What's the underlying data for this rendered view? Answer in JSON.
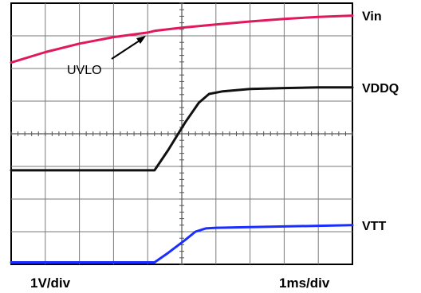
{
  "chart_data": {
    "type": "line",
    "grid": true,
    "xlim": [
      0,
      10
    ],
    "ylim": [
      0,
      8
    ],
    "bottom_left_label": "1V/div",
    "bottom_right_label": "1ms/div",
    "annotation": {
      "text": "UVLO",
      "x": 4.2,
      "y": 7.15
    },
    "series": [
      {
        "name": "Vin",
        "color": "#e0195a",
        "x": [
          0,
          1,
          2,
          3,
          4,
          4.2,
          5,
          6,
          7,
          8,
          9,
          10
        ],
        "y": [
          6.18,
          6.5,
          6.76,
          6.96,
          7.1,
          7.15,
          7.25,
          7.35,
          7.44,
          7.52,
          7.58,
          7.62
        ]
      },
      {
        "name": "VDDQ",
        "color": "#111111",
        "x": [
          0,
          2,
          4.2,
          4.6,
          5.1,
          5.5,
          5.8,
          6.2,
          7,
          8,
          9,
          10
        ],
        "y": [
          2.88,
          2.88,
          2.88,
          3.5,
          4.35,
          4.95,
          5.22,
          5.3,
          5.37,
          5.4,
          5.42,
          5.42
        ]
      },
      {
        "name": "VTT",
        "color": "#1a2fff",
        "x": [
          0,
          2,
          4.2,
          4.6,
          5.1,
          5.4,
          5.7,
          6,
          7,
          8,
          9,
          10
        ],
        "y": [
          0.06,
          0.06,
          0.06,
          0.35,
          0.75,
          1.0,
          1.1,
          1.12,
          1.14,
          1.16,
          1.18,
          1.2
        ]
      }
    ]
  }
}
